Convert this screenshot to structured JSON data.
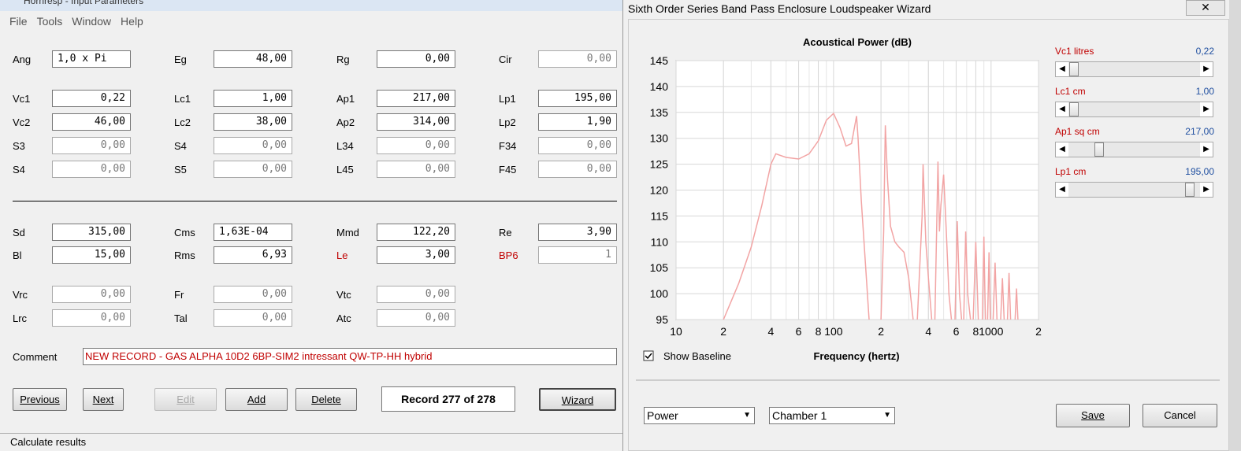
{
  "app": {
    "title": "Hornresp - Input Parameters",
    "menu": [
      "File",
      "Tools",
      "Window",
      "Help"
    ],
    "rows": [
      [
        {
          "label": "Ang",
          "value": "1,0 x Pi",
          "align": "left"
        },
        {
          "label": "Eg",
          "value": "48,00"
        },
        {
          "label": "Rg",
          "value": "0,00"
        },
        {
          "label": "Cir",
          "value": "0,00",
          "disabled": true
        }
      ],
      [
        {
          "label": "Vc1",
          "value": "0,22"
        },
        {
          "label": "Lc1",
          "value": "1,00"
        },
        {
          "label": "Ap1",
          "value": "217,00"
        },
        {
          "label": "Lp1",
          "value": "195,00"
        }
      ],
      [
        {
          "label": "Vc2",
          "value": "46,00"
        },
        {
          "label": "Lc2",
          "value": "38,00"
        },
        {
          "label": "Ap2",
          "value": "314,00"
        },
        {
          "label": "Lp2",
          "value": "1,90"
        }
      ],
      [
        {
          "label": "S3",
          "value": "0,00",
          "disabled": true
        },
        {
          "label": "S4",
          "value": "0,00",
          "disabled": true
        },
        {
          "label": "L34",
          "value": "0,00",
          "disabled": true
        },
        {
          "label": "F34",
          "value": "0,00",
          "disabled": true
        }
      ],
      [
        {
          "label": "S4",
          "value": "0,00",
          "disabled": true
        },
        {
          "label": "S5",
          "value": "0,00",
          "disabled": true
        },
        {
          "label": "L45",
          "value": "0,00",
          "disabled": true
        },
        {
          "label": "F45",
          "value": "0,00",
          "disabled": true
        }
      ],
      [
        {
          "label": "Sd",
          "value": "315,00"
        },
        {
          "label": "Cms",
          "value": "1,63E-04",
          "align": "left"
        },
        {
          "label": "Mmd",
          "value": "122,20"
        },
        {
          "label": "Re",
          "value": "3,90"
        }
      ],
      [
        {
          "label": "Bl",
          "value": "15,00"
        },
        {
          "label": "Rms",
          "value": "6,93"
        },
        {
          "label": "Le",
          "value": "3,00",
          "highlight": true
        },
        {
          "label": "BP6",
          "value": "1",
          "highlight": true,
          "disabled": true
        }
      ],
      [
        {
          "label": "Vrc",
          "value": "0,00",
          "disabled": true
        },
        {
          "label": "Fr",
          "value": "0,00",
          "disabled": true
        },
        {
          "label": "Vtc",
          "value": "0,00",
          "disabled": true
        }
      ],
      [
        {
          "label": "Lrc",
          "value": "0,00",
          "disabled": true
        },
        {
          "label": "Tal",
          "value": "0,00",
          "disabled": true
        },
        {
          "label": "Atc",
          "value": "0,00",
          "disabled": true
        }
      ]
    ],
    "comment_label": "Comment",
    "comment": "NEW RECORD - GAS ALPHA 10D2 6BP-SIM2 intressant QW-TP-HH hybrid",
    "buttons": [
      {
        "label": "Previous"
      },
      {
        "label": "Next"
      },
      {
        "label": "Edit",
        "disabled": true
      },
      {
        "label": "Add"
      },
      {
        "label": "Delete"
      }
    ],
    "record": "Record 277 of 278",
    "wizard_button": "Wizard",
    "status": "Calculate results"
  },
  "wizard": {
    "title": "Sixth Order Series Band Pass Enclosure Loudspeaker Wizard",
    "close": "✕",
    "sliders": [
      {
        "name": "Vc1  litres",
        "value": "0,22"
      },
      {
        "name": "Lc1  cm",
        "value": "1,00"
      },
      {
        "name": "Ap1  sq cm",
        "value": "217,00"
      },
      {
        "name": "Lp1  cm",
        "value": "195,00"
      }
    ],
    "checkbox": "Show Baseline",
    "dropdowns": [
      "Power",
      "Chamber 1"
    ],
    "buttons": [
      "Save",
      "Cancel"
    ]
  },
  "chart_data": {
    "type": "line",
    "title": "Acoustical Power (dB)",
    "x_label": "Frequency (hertz)",
    "log_x": true,
    "grid": true,
    "color": "#f2a4a4",
    "xlim": [
      10,
      2000
    ],
    "ylim": [
      95,
      145
    ],
    "xticks": [
      10,
      {
        "value": 20,
        "label": "2"
      },
      {
        "value": 40,
        "label": "4"
      },
      {
        "value": 60,
        "label": "6"
      },
      {
        "value": 80,
        "label": "8"
      },
      100,
      {
        "value": 200,
        "label": "2"
      },
      {
        "value": 400,
        "label": "4"
      },
      {
        "value": 600,
        "label": "6"
      },
      {
        "value": 800,
        "label": "8"
      },
      1000,
      {
        "value": 2000,
        "label": "2"
      }
    ],
    "yticks": [
      95,
      100,
      105,
      110,
      115,
      120,
      125,
      130,
      135,
      140,
      145
    ],
    "x": [
      20,
      25,
      30,
      35,
      40,
      43,
      50,
      60,
      70,
      80,
      90,
      100,
      110,
      120,
      130,
      140,
      143,
      150,
      160,
      168,
      null,
      200,
      208,
      213,
      220,
      230,
      245,
      260,
      280,
      300,
      320,
      null,
      340,
      365,
      370,
      375,
      385,
      400,
      420,
      null,
      440,
      460,
      470,
      480,
      500,
      520,
      540,
      560,
      null,
      590,
      610,
      630,
      650,
      null,
      670,
      690,
      710,
      740,
      null,
      770,
      800,
      830,
      null,
      880,
      900,
      920,
      null,
      950,
      970,
      990,
      null,
      1030,
      1060,
      1090,
      null,
      1150,
      1180,
      1210,
      null,
      1270,
      1300,
      1330,
      null,
      1420,
      1450,
      1480
    ],
    "values": [
      95,
      102,
      109,
      117,
      125,
      127,
      126.3,
      126,
      127,
      129.5,
      133.5,
      134.8,
      132,
      128.5,
      129,
      134.3,
      130,
      118,
      105,
      95,
      null,
      95,
      112,
      132.5,
      122,
      113,
      110,
      109,
      108,
      103,
      95,
      null,
      95,
      115,
      125,
      120,
      110,
      103,
      95,
      null,
      95,
      125.5,
      112,
      117,
      123,
      112,
      100,
      95,
      null,
      95,
      114,
      100,
      95,
      null,
      95,
      112,
      100,
      95,
      null,
      95,
      110,
      95,
      null,
      95,
      111,
      95,
      null,
      95,
      108,
      95,
      null,
      95,
      106,
      95,
      null,
      95,
      103,
      95,
      null,
      95,
      104,
      95,
      null,
      95,
      101,
      95
    ]
  }
}
